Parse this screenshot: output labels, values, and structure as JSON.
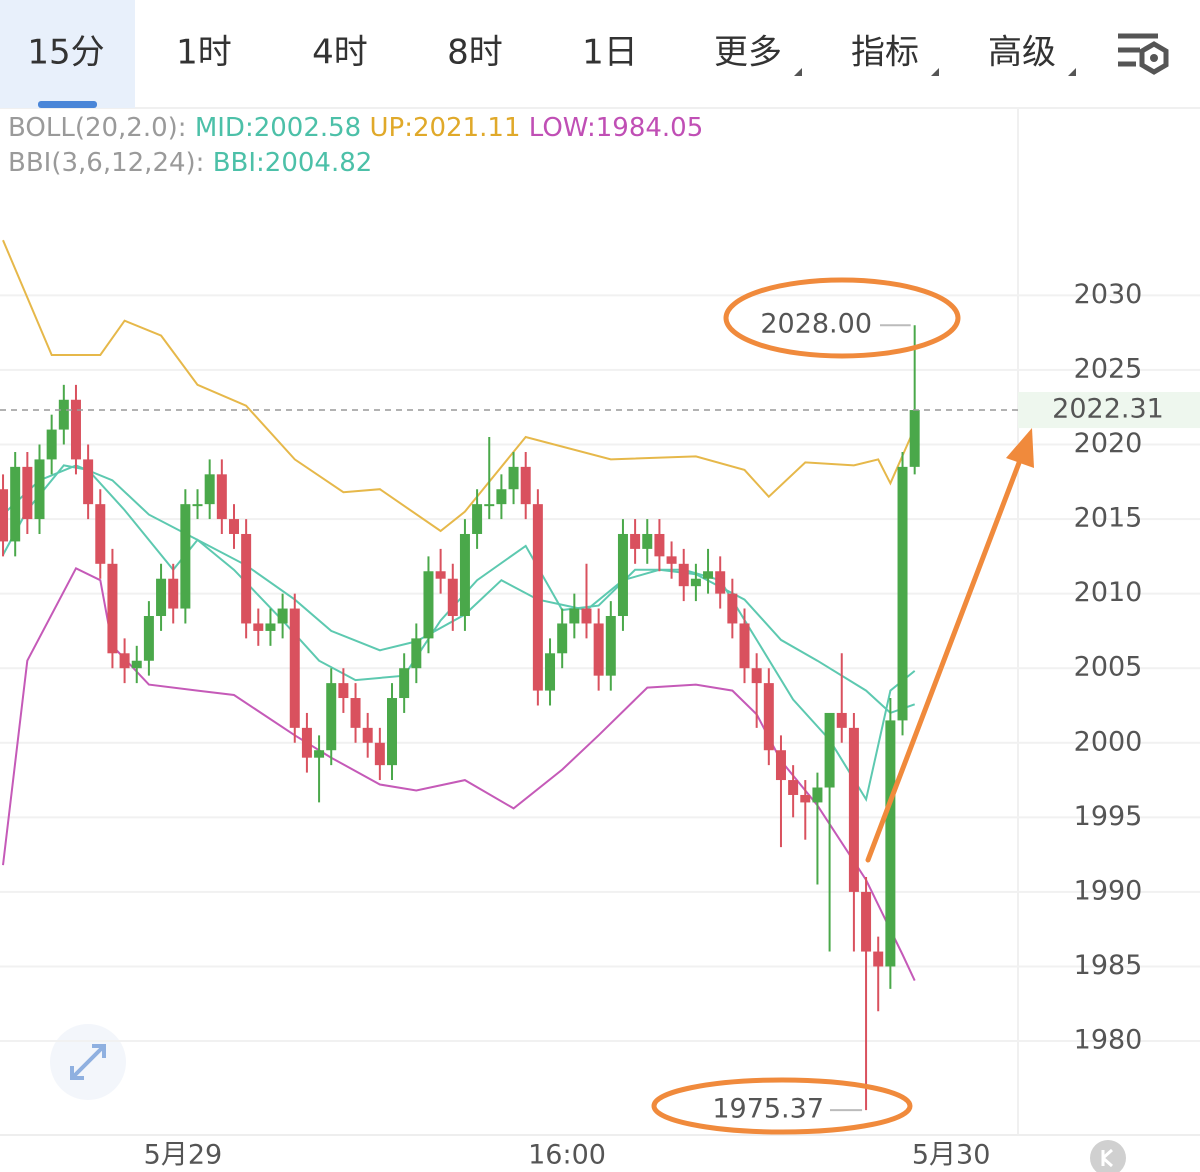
{
  "tabs": {
    "items": [
      "15分",
      "1时",
      "4时",
      "8时",
      "1日",
      "更多",
      "指标",
      "高级"
    ],
    "selected": 0
  },
  "chart_data": {
    "type": "candlestick",
    "legend": {
      "boll_title": "BOLL(20,2.0):",
      "boll_mid": "MID:2002.58",
      "boll_up": "UP:2021.11",
      "boll_low": "LOW:1984.05",
      "bbi_title": "BBI(3,6,12,24):",
      "bbi": "BBI:2004.82"
    },
    "open": [
      2017,
      2013.5,
      2018.5,
      2015,
      2019,
      2021,
      2023,
      2019,
      2016,
      2012,
      2006,
      2005,
      2005.5,
      2008.5,
      2011,
      2009,
      2016,
      2016,
      2018,
      2015,
      2014,
      2008,
      2007.5,
      2008,
      2009,
      2001,
      1999,
      1999.5,
      2004,
      2003,
      2001,
      2000,
      1998.5,
      2003,
      2005,
      2007,
      2011.5,
      2011,
      2008.5,
      2014,
      2016,
      2016,
      2017,
      2018.5,
      2016,
      2003.5,
      2006,
      2008,
      2009,
      2008,
      2004.5,
      2008.5,
      2014,
      2013,
      2014,
      2012.5,
      2012,
      2010.5,
      2011,
      2011.5,
      2010,
      2008,
      2005,
      2004,
      1999.5,
      1997.5,
      1996.5,
      1996,
      1997,
      2002,
      2001,
      1990,
      1986,
      1985,
      2001.5,
      2018.5
    ],
    "high": [
      2018,
      2019.5,
      2019.5,
      2020,
      2022,
      2024,
      2024,
      2020,
      2017,
      2013,
      2007,
      2006.5,
      2009.5,
      2012,
      2012,
      2017,
      2017,
      2019,
      2019,
      2016,
      2015,
      2009,
      2009,
      2010,
      2010,
      2002,
      2000.5,
      2005,
      2005,
      2004,
      2002,
      2001,
      2004,
      2006,
      2008,
      2012.5,
      2013,
      2012,
      2015,
      2017,
      2020.5,
      2018,
      2019.5,
      2019.5,
      2017,
      2007,
      2009,
      2010,
      2012,
      2009,
      2009.5,
      2015,
      2015,
      2015,
      2015,
      2013.5,
      2013,
      2012,
      2013,
      2012.5,
      2011,
      2009,
      2006,
      2005,
      2000.5,
      1998.5,
      1997.5,
      1998,
      2002,
      2006,
      2002,
      1991,
      1987,
      2003,
      2019.5,
      2028
    ],
    "low": [
      2012.5,
      2012.5,
      2014,
      2014,
      2018,
      2020,
      2018,
      2015,
      2011,
      2005,
      2004,
      2004,
      2004.5,
      2007.5,
      2008,
      2008,
      2015,
      2015,
      2014,
      2013,
      2007,
      2006.5,
      2006.5,
      2007,
      2000,
      1998,
      1996,
      1998.5,
      2002,
      2000,
      1999,
      1997.5,
      1997.5,
      2002,
      2004,
      2006,
      2010,
      2007.5,
      2007.5,
      2013,
      2015,
      2015,
      2016,
      2015,
      2002.5,
      2002.5,
      2005,
      2007,
      2007,
      2003.5,
      2003.5,
      2007.5,
      2012,
      2012,
      2011.5,
      2011,
      2009.5,
      2009.5,
      2010,
      2009,
      2007,
      2004,
      2001,
      1998.5,
      1993,
      1995,
      1993.5,
      1990.5,
      1986,
      2000,
      1986,
      1975.37,
      1982,
      1983.5,
      2000.5,
      2018
    ],
    "close": [
      2013.5,
      2018.5,
      2015,
      2019,
      2021,
      2023,
      2019,
      2016,
      2012,
      2006,
      2005,
      2005.5,
      2008.5,
      2011,
      2009,
      2016,
      2016,
      2018,
      2015,
      2014,
      2008,
      2007.5,
      2008,
      2009,
      2001,
      1999,
      1999.5,
      2004,
      2003,
      2001,
      2000,
      1998.5,
      2003,
      2005,
      2007,
      2011.5,
      2011,
      2008.5,
      2014,
      2016,
      2016,
      2017,
      2018.5,
      2016,
      2003.5,
      2006,
      2008,
      2009,
      2008,
      2004.5,
      2008.5,
      2014,
      2013,
      2014,
      2012.5,
      2012,
      2010.5,
      2011,
      2011.5,
      2010,
      2008,
      2005,
      2004,
      1999.5,
      1997.5,
      1996.5,
      1996,
      1997,
      2002,
      2001,
      1990,
      1986,
      1985,
      2001.5,
      2018.5,
      2022.31
    ],
    "up_color": "#4aa84a",
    "down_color": "#d9515e",
    "lines": [
      {
        "color": "#e6b84a",
        "x": [
          0,
          4,
          8,
          10,
          13,
          16,
          20,
          24,
          28,
          31,
          36,
          38,
          43,
          50,
          57,
          61,
          63,
          66,
          70,
          72,
          73,
          75
        ],
        "values": [
          2033.7,
          2026,
          2026,
          2028.3,
          2027.3,
          2024,
          2022.6,
          2019,
          2016.8,
          2017,
          2014.2,
          2015.5,
          2020.5,
          2019,
          2019.2,
          2018.3,
          2016.5,
          2018.8,
          2018.6,
          2019,
          2017.4,
          2021.11
        ]
      },
      {
        "color": "#5dc9b0",
        "x": [
          0,
          3,
          6,
          9,
          12,
          16,
          20,
          24,
          27,
          31,
          34,
          38,
          41,
          44,
          48,
          51,
          54,
          57,
          61,
          64,
          67,
          71,
          73,
          75
        ],
        "values": [
          2015.3,
          2017.6,
          2018.6,
          2017.6,
          2015.3,
          2013.6,
          2011.9,
          2009.6,
          2007.5,
          2006.2,
          2006.8,
          2008.6,
          2010.9,
          2009.6,
          2008.9,
          2010.9,
          2011.6,
          2011.3,
          2009.6,
          2006.9,
          2005.5,
          2003.5,
          2002,
          2002.58
        ]
      },
      {
        "color": "#c55ab8",
        "x": [
          0,
          2,
          6,
          8,
          9,
          12,
          16,
          19,
          24,
          27,
          31,
          34,
          38,
          42,
          46,
          49,
          53,
          57,
          60,
          62,
          64,
          67,
          71,
          74,
          75
        ],
        "values": [
          1991.8,
          2005.5,
          2011.7,
          2010.9,
          2006.5,
          2003.9,
          2003.5,
          2003.2,
          2000.5,
          1999,
          1997.2,
          1996.8,
          1997.5,
          1995.6,
          1998.2,
          2000.5,
          2003.7,
          2003.9,
          2003.5,
          2001.9,
          1998.8,
          1995.8,
          1990.8,
          1985.8,
          1984.05
        ]
      },
      {
        "color": "#5dc9b0",
        "x": [
          0,
          2,
          5,
          7,
          10,
          14,
          16,
          19,
          23,
          26,
          29,
          33,
          36,
          39,
          43,
          46,
          49,
          52,
          56,
          59,
          62,
          65,
          68,
          71,
          73,
          75
        ],
        "values": [
          2012.6,
          2015.6,
          2018.6,
          2018.3,
          2015.6,
          2011.6,
          2013.6,
          2011.6,
          2008.2,
          2005.5,
          2004.2,
          2004.5,
          2008.2,
          2010.9,
          2013.2,
          2008.9,
          2009.2,
          2011.6,
          2011.6,
          2010.9,
          2006.9,
          2002.9,
          2000.2,
          1996.2,
          2003.5,
          2004.82
        ]
      }
    ],
    "ylim": [
      1973.7,
      2037.4
    ],
    "yticks": [
      1980,
      1985,
      1990,
      1995,
      2000,
      2005,
      2010,
      2015,
      2020,
      2025,
      2030
    ],
    "xlim": [
      -0.25,
      83.5
    ],
    "xticks": [
      {
        "value": 14.8,
        "label": "5月29"
      },
      {
        "value": 46.4,
        "label": "16:00"
      },
      {
        "value": 78,
        "label": "5月30"
      }
    ],
    "annotations": {
      "high": "2028.00",
      "low": "1975.37",
      "last": "2022.31"
    },
    "grid": true
  }
}
